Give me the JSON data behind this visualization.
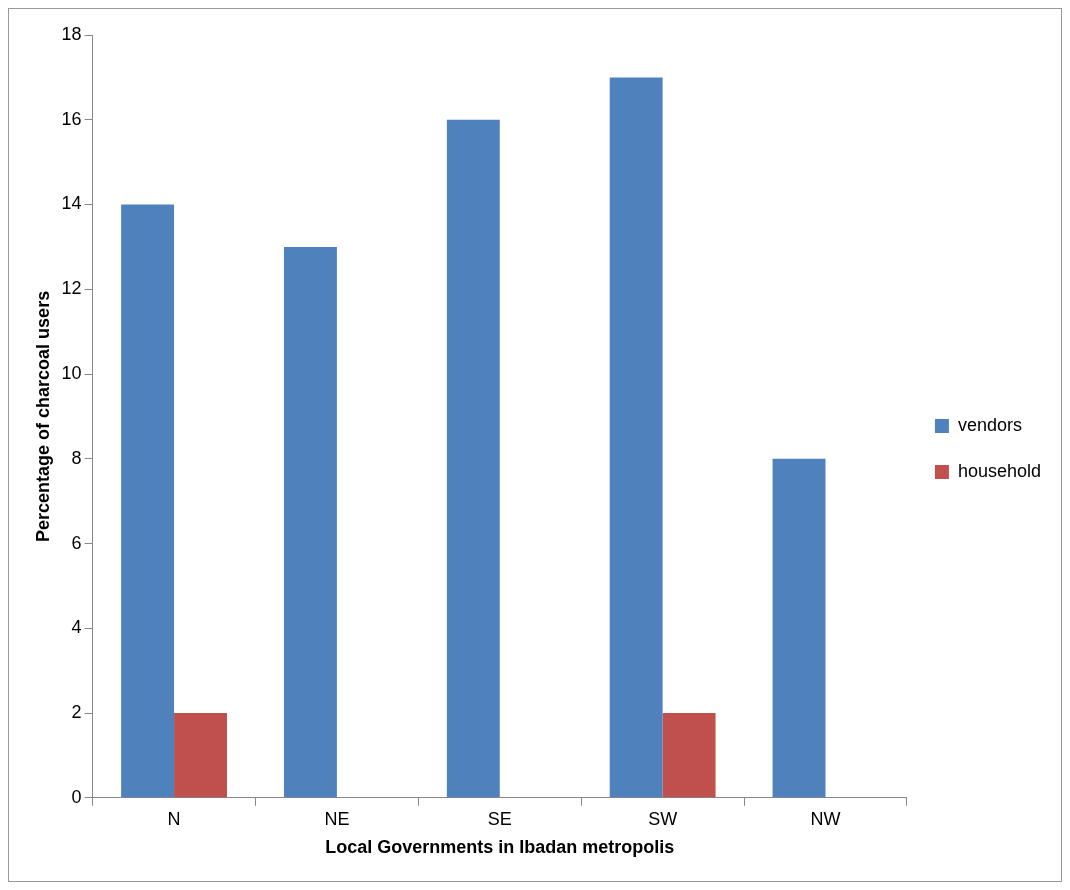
{
  "chart_data": {
    "type": "bar",
    "xlabel": "Local Governments in Ibadan metropolis",
    "ylabel": "Percentage of charcoal users",
    "categories": [
      "N",
      "NE",
      "SE",
      "SW",
      "NW"
    ],
    "series": [
      {
        "name": "vendors",
        "color": "#4f81bd",
        "values": [
          14,
          13,
          16,
          17,
          8
        ]
      },
      {
        "name": "household",
        "color": "#c0504d",
        "values": [
          2,
          0,
          0,
          2,
          0
        ]
      }
    ],
    "ylim": [
      0,
      18
    ],
    "yticks": [
      0,
      2,
      4,
      6,
      8,
      10,
      12,
      14,
      16,
      18
    ],
    "grid": false,
    "legend": "right"
  }
}
